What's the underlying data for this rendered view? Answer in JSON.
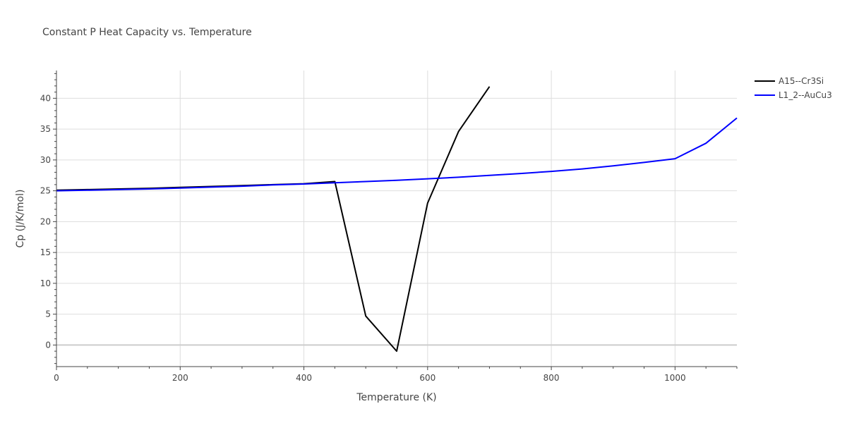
{
  "chart_data": {
    "type": "line",
    "title": "Constant P Heat Capacity vs. Temperature",
    "xlabel": "Temperature (K)",
    "ylabel": "Cp (J/K/mol)",
    "xlim": [
      0,
      1100
    ],
    "ylim": [
      -3.5,
      44.5
    ],
    "xticks": [
      0,
      200,
      400,
      600,
      800,
      1000
    ],
    "yticks": [
      0,
      5,
      10,
      15,
      20,
      25,
      30,
      35,
      40
    ],
    "grid": true,
    "legend_position": "top-right",
    "series": [
      {
        "name": "A15--Cr3Si",
        "color": "#000000",
        "x": [
          0,
          50,
          100,
          150,
          200,
          250,
          300,
          350,
          400,
          450,
          500,
          550,
          600,
          650,
          700
        ],
        "y": [
          25.1,
          25.2,
          25.3,
          25.4,
          25.55,
          25.7,
          25.85,
          26.0,
          26.15,
          26.5,
          4.7,
          -1.0,
          23.0,
          34.6,
          41.9
        ]
      },
      {
        "name": "L1_2--AuCu3",
        "color": "#0000ff",
        "x": [
          0,
          50,
          100,
          150,
          200,
          250,
          300,
          350,
          400,
          450,
          500,
          550,
          600,
          650,
          700,
          750,
          800,
          850,
          900,
          950,
          1000,
          1050,
          1100
        ],
        "y": [
          25.0,
          25.1,
          25.2,
          25.3,
          25.45,
          25.6,
          25.75,
          25.95,
          26.1,
          26.3,
          26.5,
          26.7,
          26.95,
          27.2,
          27.5,
          27.8,
          28.15,
          28.55,
          29.05,
          29.6,
          30.2,
          32.7,
          36.8
        ]
      }
    ]
  }
}
